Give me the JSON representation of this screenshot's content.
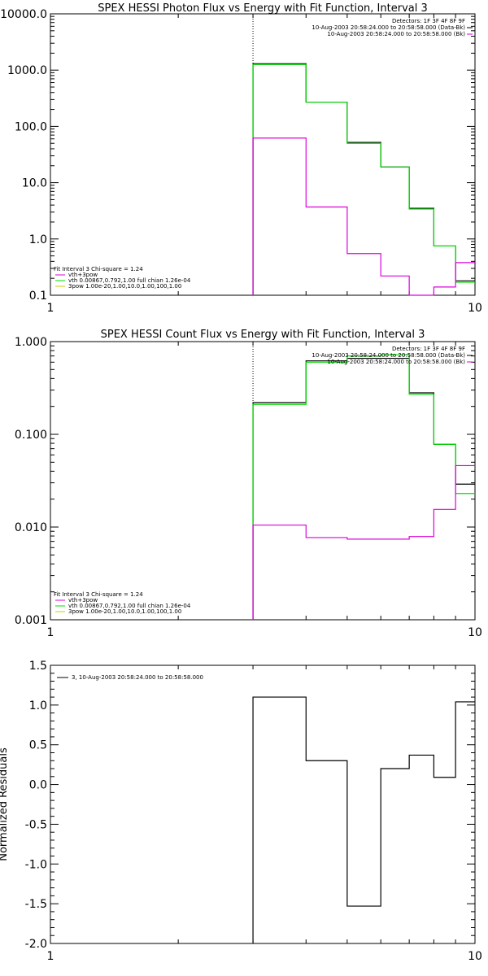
{
  "chart_data": [
    {
      "type": "line",
      "title": "SPEX HESSI Photon Flux vs Energy with Fit Function, Interval 3",
      "x_scale": "log",
      "y_scale": "log",
      "xlim": [
        1,
        10
      ],
      "ylim": [
        0.1,
        10000
      ],
      "x_ticks": [
        "1",
        "10"
      ],
      "y_ticks": [
        "0.1",
        "1.0",
        "10.0",
        "100.0",
        "1000.0",
        "10000.0"
      ],
      "marker_x": 3,
      "legend_top": [
        "Detectors: 1F 3F 4F 8F 9F",
        "10-Aug-2003 20:58:24.000 to 20:58:58.000 (Data-Bk)",
        "10-Aug-2003 20:58:24.000 to 20:58:58.000 (Bk)"
      ],
      "legend_bottom": [
        "Fit Interval 3   Chi-square = 1.24",
        "vth+3pow",
        "vth 0.00867,0.792,1.00  full chian 1.26e-04",
        "3pow 1.00e-20,1.00,10.0,1.00,100,1.00"
      ],
      "colors": {
        "data": "#000000",
        "fit": "#00dd00",
        "bk": "#dd00dd"
      },
      "edges": [
        3,
        4,
        5,
        6,
        7,
        8,
        9,
        10
      ],
      "series": [
        {
          "name": "10-Aug-2003 20:58:24.000 to 20:58:58.000 (Data-Bk)",
          "values": [
            1300,
            270,
            52,
            19,
            3.5,
            0.75,
            0.18
          ]
        },
        {
          "name": "vth+3pow",
          "values": [
            1260,
            270,
            50,
            19,
            3.4,
            0.75,
            0.17
          ]
        },
        {
          "name": "10-Aug-2003 20:58:24.000 to 20:58:58.000 (Bk)",
          "values": [
            62,
            3.7,
            0.55,
            0.22,
            0.09,
            0.14,
            0.38
          ]
        }
      ]
    },
    {
      "type": "line",
      "title": "SPEX HESSI Count Flux vs Energy with Fit Function, Interval 3",
      "x_scale": "log",
      "y_scale": "log",
      "xlim": [
        1,
        10
      ],
      "ylim": [
        0.001,
        1
      ],
      "x_ticks": [
        "1",
        "10"
      ],
      "y_ticks": [
        "0.001",
        "0.010",
        "0.100",
        "1.000"
      ],
      "marker_x": 3,
      "legend_top": [
        "Detectors: 1F 3F 4F 8F 9F",
        "10-Aug-2003 20:58:24.000 to 20:58:58.000 (Data-Bk)",
        "10-Aug-2003 20:58:24.000 to 20:58:58.000 (Bk)"
      ],
      "legend_bottom": [
        "Fit Interval 3   Chi-square = 1.24",
        "vth+3pow",
        "vth 0.00867,0.792,1.00  full chian 1.26e-04",
        "3pow 1.00e-20,1.00,10.0,1.00,100,1.00"
      ],
      "colors": {
        "data": "#000000",
        "fit": "#00dd00",
        "bk": "#dd00dd"
      },
      "edges": [
        3,
        4,
        5,
        6,
        7,
        8,
        9,
        10
      ],
      "series": [
        {
          "name": "10-Aug-2003 20:58:24.000 to 20:58:58.000 (Data-Bk)",
          "values": [
            0.22,
            0.62,
            0.66,
            0.66,
            0.28,
            0.078,
            0.029
          ]
        },
        {
          "name": "vth+3pow",
          "values": [
            0.21,
            0.6,
            0.7,
            0.72,
            0.27,
            0.078,
            0.023
          ]
        },
        {
          "name": "10-Aug-2003 20:58:24.000 to 20:58:58.000 (Bk)",
          "values": [
            0.0105,
            0.0077,
            0.0074,
            0.0074,
            0.0079,
            0.0155,
            0.046
          ]
        }
      ]
    },
    {
      "type": "line",
      "title": "",
      "ylabel": "Normalized Residuals",
      "x_scale": "log",
      "xlim": [
        1,
        10
      ],
      "ylim": [
        -2.0,
        1.5
      ],
      "x_ticks": [
        "1",
        "10"
      ],
      "y_ticks": [
        "-2.0",
        "-1.5",
        "-1.0",
        "-0.5",
        "0.0",
        "0.5",
        "1.0",
        "1.5"
      ],
      "legend_top": [
        "3, 10-Aug-2003 20:58:24.000 to 20:58:58.000"
      ],
      "colors": {
        "data": "#000000"
      },
      "edges": [
        3,
        4,
        5,
        6,
        7,
        8,
        9,
        10
      ],
      "series": [
        {
          "name": "3, 10-Aug-2003 20:58:24.000 to 20:58:58.000",
          "values": [
            1.1,
            0.3,
            -1.53,
            0.2,
            0.37,
            0.09,
            1.04
          ]
        }
      ]
    }
  ]
}
